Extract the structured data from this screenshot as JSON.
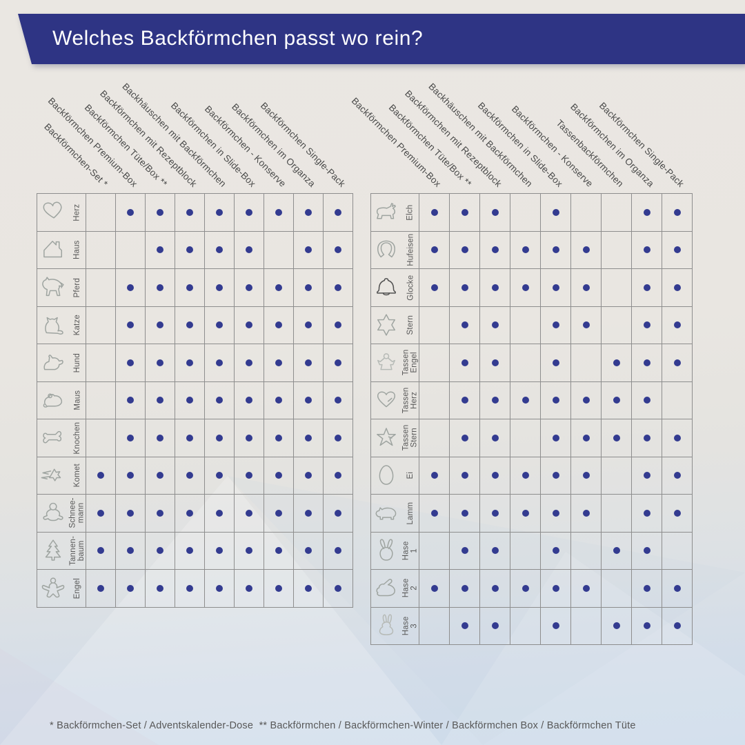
{
  "title": "Welches Backförmchen passt wo rein?",
  "footnote": "* Backförmchen-Set / Adventskalender-Dose  ** Backförmchen / Backförmchen-Winter / Backförmchen Box / Backförmchen Tüte",
  "colors": {
    "banner_blue": "#2e3484",
    "dot_blue": "#333b90",
    "grid_gray": "#8d8d8d",
    "header_text": "#4a4a4a",
    "label_text": "#575757",
    "footnote_text": "#585858",
    "title_text": "#ffffff",
    "icon_gray": "#9ea4a0"
  },
  "chart_data": [
    {
      "type": "matrix",
      "name": "weihnachts-backfoermchen",
      "marker": "dot",
      "columns": [
        "Backförmchen-Set *",
        "Backförmchen Premium-Box",
        "Backförmchen Tüte/Box **",
        "Backförmchen mit Rezeptblock",
        "Backhäuschen mit Backförmchen",
        "Backförmchen in Slide-Box",
        "Backförmchen - Konserve",
        "Backförmchen im Organza",
        "Backförmchen Single-Pack"
      ],
      "rows": [
        {
          "label": "Herz",
          "icon": "herz-icon",
          "values": [
            0,
            1,
            1,
            1,
            1,
            1,
            1,
            1,
            1
          ]
        },
        {
          "label": "Haus",
          "icon": "haus-icon",
          "values": [
            0,
            0,
            1,
            1,
            1,
            1,
            0,
            1,
            1
          ]
        },
        {
          "label": "Pferd",
          "icon": "pferd-icon",
          "values": [
            0,
            1,
            1,
            1,
            1,
            1,
            1,
            1,
            1
          ]
        },
        {
          "label": "Katze",
          "icon": "katze-icon",
          "values": [
            0,
            1,
            1,
            1,
            1,
            1,
            1,
            1,
            1
          ]
        },
        {
          "label": "Hund",
          "icon": "hund-icon",
          "values": [
            0,
            1,
            1,
            1,
            1,
            1,
            1,
            1,
            1
          ]
        },
        {
          "label": "Maus",
          "icon": "maus-icon",
          "values": [
            0,
            1,
            1,
            1,
            1,
            1,
            1,
            1,
            1
          ]
        },
        {
          "label": "Knochen",
          "icon": "knochen-icon",
          "values": [
            0,
            1,
            1,
            1,
            1,
            1,
            1,
            1,
            1
          ]
        },
        {
          "label": "Komet",
          "icon": "komet-icon",
          "values": [
            1,
            1,
            1,
            1,
            1,
            1,
            1,
            1,
            1
          ]
        },
        {
          "label": "Schnee-\nmann",
          "icon": "schneemann-icon",
          "values": [
            1,
            1,
            1,
            1,
            1,
            1,
            1,
            1,
            1
          ]
        },
        {
          "label": "Tannen-\nbaum",
          "icon": "tannenbaum-icon",
          "values": [
            1,
            1,
            1,
            1,
            1,
            1,
            1,
            1,
            1
          ]
        },
        {
          "label": "Engel",
          "icon": "engel-icon",
          "values": [
            1,
            1,
            1,
            1,
            1,
            1,
            1,
            1,
            1
          ]
        }
      ]
    },
    {
      "type": "matrix",
      "name": "oster-und-tassen-backfoermchen",
      "marker": "dot",
      "columns": [
        "Backförmchen Premium-Box",
        "Backförmchen Tüte/Box **",
        "Backförmchen mit Rezeptblock",
        "Backhäuschen mit Backförmchen",
        "Backförmchen in Slide-Box",
        "Backförmchen - Konserve",
        "Tassenbackförmchen",
        "Backförmchen im Organza",
        "Backförmchen Single-Pack"
      ],
      "rows": [
        {
          "label": "Elch",
          "icon": "elch-icon",
          "values": [
            1,
            1,
            1,
            0,
            1,
            0,
            0,
            1,
            1
          ]
        },
        {
          "label": "Hufeisen",
          "icon": "hufeisen-icon",
          "values": [
            1,
            1,
            1,
            1,
            1,
            1,
            0,
            1,
            1
          ]
        },
        {
          "label": "Glocke",
          "icon": "glocke-icon",
          "values": [
            1,
            1,
            1,
            1,
            1,
            1,
            0,
            1,
            1
          ]
        },
        {
          "label": "Stern",
          "icon": "stern-icon",
          "values": [
            0,
            1,
            1,
            0,
            1,
            1,
            0,
            1,
            1
          ]
        },
        {
          "label": "Tassen\nEngel",
          "icon": "tassen-engel-icon",
          "values": [
            0,
            1,
            1,
            0,
            1,
            0,
            1,
            1,
            1
          ]
        },
        {
          "label": "Tassen\nHerz",
          "icon": "tassen-herz-icon",
          "values": [
            0,
            1,
            1,
            1,
            1,
            1,
            1,
            1,
            0
          ]
        },
        {
          "label": "Tassen\nStern",
          "icon": "tassen-stern-icon",
          "values": [
            0,
            1,
            1,
            0,
            1,
            1,
            1,
            1,
            1
          ]
        },
        {
          "label": "Ei",
          "icon": "ei-icon",
          "values": [
            1,
            1,
            1,
            1,
            1,
            1,
            0,
            1,
            1
          ]
        },
        {
          "label": "Lamm",
          "icon": "lamm-icon",
          "values": [
            1,
            1,
            1,
            1,
            1,
            1,
            0,
            1,
            1
          ]
        },
        {
          "label": "Hase 1",
          "icon": "hase1-icon",
          "values": [
            0,
            1,
            1,
            0,
            1,
            0,
            1,
            1,
            0
          ]
        },
        {
          "label": "Hase 2",
          "icon": "hase2-icon",
          "values": [
            1,
            1,
            1,
            1,
            1,
            1,
            0,
            1,
            1
          ]
        },
        {
          "label": "Hase 3",
          "icon": "hase3-icon",
          "values": [
            0,
            1,
            1,
            0,
            1,
            0,
            1,
            1,
            1
          ]
        }
      ]
    }
  ]
}
